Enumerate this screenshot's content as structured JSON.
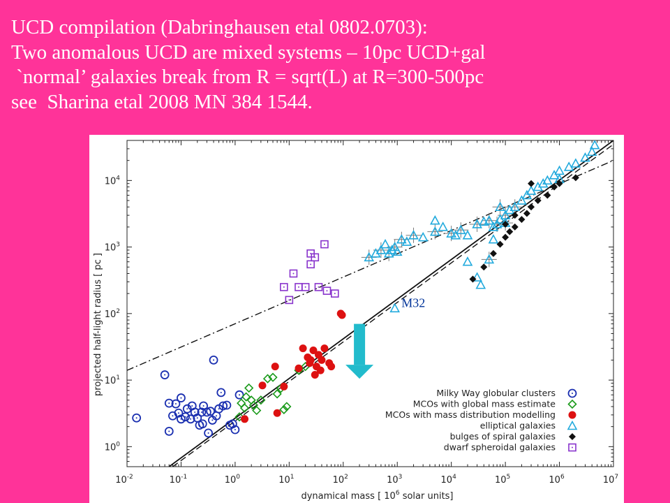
{
  "slide": {
    "background": "#ff3399",
    "title_lines": [
      "UCD compilation (Dabringhausen etal 0802.0703):",
      "Two anomalous UCD are mixed systems – 10pc UCD+gal",
      " `normal’ galaxies break from R = sqrt(L) at R=300-500pc",
      "see  Sharina etal 2008 MN 384 1544."
    ]
  },
  "chart_data": {
    "type": "scatter",
    "xlabel_parts": [
      "dynamical mass  [ 10",
      "6",
      " solar units]"
    ],
    "ylabel": "projected half-light radius  [ pc ]",
    "x_scale": "log",
    "y_scale": "log",
    "xlim": [
      0.01,
      10000000
    ],
    "ylim": [
      0.5,
      40000
    ],
    "x_ticks": [
      {
        "base": "10",
        "exp": "-2",
        "value": 0.01
      },
      {
        "base": "10",
        "exp": "-1",
        "value": 0.1
      },
      {
        "base": "10",
        "exp": "0",
        "value": 1
      },
      {
        "base": "10",
        "exp": "1",
        "value": 10
      },
      {
        "base": "10",
        "exp": "2",
        "value": 100
      },
      {
        "base": "10",
        "exp": "3",
        "value": 1000
      },
      {
        "base": "10",
        "exp": "4",
        "value": 10000
      },
      {
        "base": "10",
        "exp": "5",
        "value": 100000
      },
      {
        "base": "10",
        "exp": "6",
        "value": 1000000
      },
      {
        "base": "10",
        "exp": "7",
        "value": 10000000
      }
    ],
    "y_ticks": [
      {
        "base": "10",
        "exp": "0",
        "value": 1
      },
      {
        "base": "10",
        "exp": "1",
        "value": 10
      },
      {
        "base": "10",
        "exp": "2",
        "value": 100
      },
      {
        "base": "10",
        "exp": "3",
        "value": 1000
      },
      {
        "base": "10",
        "exp": "4",
        "value": 10000
      }
    ],
    "legend_position": "bottom-right",
    "series": [
      {
        "name": "Milky Way globular clusters",
        "marker": "circle-dot",
        "color": "#1a2fb0",
        "points": [
          [
            0.015,
            2.7
          ],
          [
            0.05,
            12
          ],
          [
            0.06,
            1.7
          ],
          [
            0.06,
            4.5
          ],
          [
            0.07,
            2.9
          ],
          [
            0.08,
            4.4
          ],
          [
            0.09,
            3.2
          ],
          [
            0.1,
            5.4
          ],
          [
            0.1,
            2.6
          ],
          [
            0.12,
            2.8
          ],
          [
            0.13,
            3.7
          ],
          [
            0.15,
            2.6
          ],
          [
            0.16,
            4.1
          ],
          [
            0.18,
            3.3
          ],
          [
            0.2,
            2.7
          ],
          [
            0.22,
            2.1
          ],
          [
            0.24,
            3.3
          ],
          [
            0.26,
            4.1
          ],
          [
            0.3,
            3.3
          ],
          [
            0.32,
            1.6
          ],
          [
            0.35,
            3.4
          ],
          [
            0.38,
            2.5
          ],
          [
            0.4,
            20
          ],
          [
            0.45,
            2.9
          ],
          [
            0.5,
            3.7
          ],
          [
            0.55,
            6.5
          ],
          [
            0.6,
            4.1
          ],
          [
            0.7,
            4.2
          ],
          [
            0.8,
            2.1
          ],
          [
            1.0,
            1.8
          ],
          [
            0.9,
            2.2
          ],
          [
            1.2,
            6
          ],
          [
            0.25,
            2.2
          ]
        ]
      },
      {
        "name": "MCOs with global mass estimate",
        "marker": "diamond-open",
        "color": "#1a9a1a",
        "points": [
          [
            1.2,
            2.8
          ],
          [
            1.3,
            4.5
          ],
          [
            1.5,
            3.8
          ],
          [
            1.6,
            5.6
          ],
          [
            1.8,
            7.6
          ],
          [
            2.0,
            5.0
          ],
          [
            2.5,
            3.5
          ],
          [
            3.0,
            5.0
          ],
          [
            4.0,
            10.5
          ],
          [
            5,
            11
          ],
          [
            6,
            6.2
          ],
          [
            7,
            7.5
          ],
          [
            8,
            3.6
          ],
          [
            9,
            4
          ],
          [
            15,
            14
          ],
          [
            20,
            16
          ],
          [
            2.2,
            4.2
          ]
        ]
      },
      {
        "name": "MCOs with mass distribution modelling",
        "marker": "filled-circle",
        "color": "#dd1111",
        "points": [
          [
            1.5,
            2.6
          ],
          [
            3.2,
            8.3
          ],
          [
            6.0,
            3.2
          ],
          [
            5.5,
            16
          ],
          [
            8.0,
            8.0
          ],
          [
            15,
            15
          ],
          [
            18,
            30
          ],
          [
            22,
            22
          ],
          [
            24,
            18
          ],
          [
            28,
            28
          ],
          [
            30,
            12
          ],
          [
            32,
            16
          ],
          [
            35,
            24
          ],
          [
            40,
            20
          ],
          [
            45,
            30
          ],
          [
            55,
            18
          ],
          [
            60,
            16
          ],
          [
            90,
            100
          ],
          [
            95,
            95
          ],
          [
            25,
            20
          ],
          [
            38,
            14
          ]
        ]
      },
      {
        "name": "elliptical galaxies",
        "marker": "triangle-open",
        "color": "#22aadd",
        "points": [
          [
            300,
            700
          ],
          [
            400,
            800
          ],
          [
            500,
            900
          ],
          [
            600,
            1100
          ],
          [
            700,
            800
          ],
          [
            800,
            900
          ],
          [
            900,
            1000
          ],
          [
            1000,
            850
          ],
          [
            1200,
            1300
          ],
          [
            1500,
            1200
          ],
          [
            2000,
            1500
          ],
          [
            3000,
            1400
          ],
          [
            5000,
            1700
          ],
          [
            7000,
            2000
          ],
          [
            10000,
            1600
          ],
          [
            12000,
            1500
          ],
          [
            15000,
            1800
          ],
          [
            20000,
            1500
          ],
          [
            30000,
            2200
          ],
          [
            40000,
            2400
          ],
          [
            50000,
            2500
          ],
          [
            60000,
            2000
          ],
          [
            70000,
            2200
          ],
          [
            80000,
            2600
          ],
          [
            100000,
            3000
          ],
          [
            120000,
            3600
          ],
          [
            150000,
            4000
          ],
          [
            200000,
            5000
          ],
          [
            250000,
            6000
          ],
          [
            300000,
            7000
          ],
          [
            400000,
            8000
          ],
          [
            500000,
            9000
          ],
          [
            600000,
            10000
          ],
          [
            800000,
            12000
          ],
          [
            1000000,
            14000
          ],
          [
            1500000,
            16000
          ],
          [
            2000000,
            18000
          ],
          [
            3000000,
            22000
          ],
          [
            4500000,
            34000
          ],
          [
            4000000,
            27000
          ],
          [
            30000,
            350
          ],
          [
            60000,
            1300
          ],
          [
            100000,
            2300
          ],
          [
            20000,
            600
          ],
          [
            900,
            120
          ],
          [
            5000,
            2500
          ],
          [
            80000,
            4000
          ],
          [
            1000000,
            10500
          ],
          [
            50000,
            650
          ],
          [
            35000,
            270
          ]
        ]
      },
      {
        "name": "bulges of spiral galaxies",
        "marker": "filled-diamond",
        "color": "#111111",
        "points": [
          [
            25000,
            330
          ],
          [
            40000,
            500
          ],
          [
            60000,
            800
          ],
          [
            80000,
            1100
          ],
          [
            100000,
            1400
          ],
          [
            120000,
            1700
          ],
          [
            150000,
            2000
          ],
          [
            200000,
            2600
          ],
          [
            250000,
            3200
          ],
          [
            300000,
            4000
          ],
          [
            400000,
            5000
          ],
          [
            600000,
            6000
          ],
          [
            800000,
            8000
          ],
          [
            1000000,
            9000
          ],
          [
            2000000,
            11000
          ],
          [
            300000,
            9000
          ],
          [
            100000,
            2200
          ],
          [
            150000,
            3000
          ]
        ]
      },
      {
        "name": "dwarf spheroidal galaxies",
        "marker": "square-dot",
        "color": "#8833cc",
        "points": [
          [
            8,
            250
          ],
          [
            10,
            160
          ],
          [
            12,
            400
          ],
          [
            15,
            250
          ],
          [
            20,
            250
          ],
          [
            25,
            550
          ],
          [
            25,
            800
          ],
          [
            30,
            700
          ],
          [
            35,
            250
          ],
          [
            45,
            1100
          ],
          [
            50,
            220
          ],
          [
            70,
            200
          ]
        ]
      }
    ],
    "lines": [
      {
        "style": "solid",
        "color": "#111111",
        "from": [
          0.06,
          0.5
        ],
        "to": [
          10000000,
          40000
        ]
      },
      {
        "style": "dashed",
        "color": "#111111",
        "from": [
          0.07,
          0.5
        ],
        "to": [
          10000000,
          35000
        ]
      },
      {
        "style": "dashdot",
        "color": "#111111",
        "from": [
          0.01,
          14
        ],
        "to": [
          10000000,
          20000
        ]
      }
    ],
    "annotations": [
      {
        "text": "M32",
        "x": 1000,
        "y": 120,
        "color": "#003399"
      }
    ],
    "arrow": {
      "color": "#22bbcc",
      "x": 200,
      "y_from": 70,
      "y_to": 11
    }
  }
}
